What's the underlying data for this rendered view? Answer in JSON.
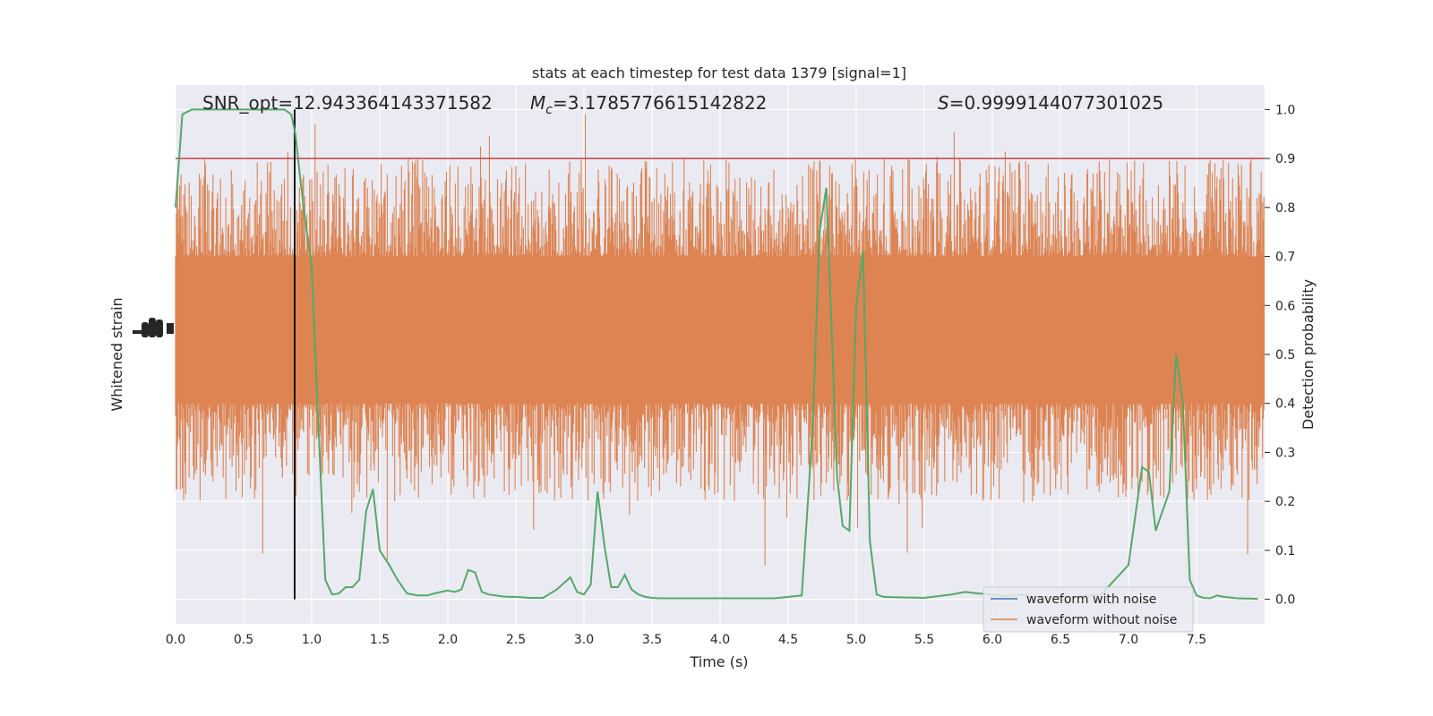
{
  "chart_data": {
    "type": "line",
    "title": "stats at each timestep for test data 1379 [signal=1]",
    "annotations": {
      "snr": "SNR_opt=12.943364143371582",
      "mc_symbol": "M",
      "mc_subscript": "c",
      "mc_value": "=3.1785776615142822",
      "s_symbol": "S",
      "s_value": "=0.9999144077301025"
    },
    "xlabel": "Time (s)",
    "ylabel_left": "Whitened strain",
    "ylabel_right": "Detection probability",
    "xlim": [
      0.0,
      8.0
    ],
    "ylim_right": [
      -0.05,
      1.05
    ],
    "x_ticks": [
      "0.0",
      "0.5",
      "1.0",
      "1.5",
      "2.0",
      "2.5",
      "3.0",
      "3.5",
      "4.0",
      "4.5",
      "5.0",
      "5.5",
      "6.0",
      "6.5",
      "7.0",
      "7.5"
    ],
    "y_ticks_right": [
      "0.0",
      "0.1",
      "0.2",
      "0.3",
      "0.4",
      "0.5",
      "0.6",
      "0.7",
      "0.8",
      "0.9",
      "1.0"
    ],
    "grid": true,
    "legend_position": "bottom-right",
    "legend": [
      {
        "label": "waveform with noise",
        "color": "#4c72b0"
      },
      {
        "label": "waveform without noise",
        "color": "#dd8452"
      }
    ],
    "threshold": {
      "y": 0.9,
      "color": "#c44e52"
    },
    "vline": {
      "x": 0.875,
      "color": "#000000"
    },
    "colors": {
      "background": "#eaeaf2",
      "grid": "#ffffff",
      "strain": "#dd8452",
      "probability": "#55a868"
    },
    "strain_band": {
      "core_low": 0.4,
      "core_high": 0.7,
      "min": -0.05,
      "max": 1.03
    },
    "probability_series": {
      "name": "Detection probability",
      "x": [
        0.0,
        0.05,
        0.12,
        0.2,
        0.4,
        0.6,
        0.8,
        0.85,
        0.88,
        0.92,
        0.95,
        1.0,
        1.05,
        1.1,
        1.15,
        1.2,
        1.25,
        1.3,
        1.35,
        1.4,
        1.45,
        1.5,
        1.57,
        1.63,
        1.7,
        1.78,
        1.85,
        1.9,
        1.95,
        2.0,
        2.05,
        2.1,
        2.15,
        2.2,
        2.25,
        2.3,
        2.35,
        2.4,
        2.45,
        2.5,
        2.6,
        2.7,
        2.8,
        2.9,
        2.95,
        3.0,
        3.05,
        3.1,
        3.15,
        3.2,
        3.25,
        3.3,
        3.35,
        3.4,
        3.45,
        3.5,
        3.55,
        3.6,
        3.7,
        3.85,
        4.0,
        4.2,
        4.4,
        4.6,
        4.68,
        4.73,
        4.78,
        4.82,
        4.86,
        4.9,
        4.95,
        5.0,
        5.05,
        5.1,
        5.15,
        5.2,
        5.3,
        5.5,
        5.7,
        5.8,
        5.9,
        6.0,
        6.05,
        6.1,
        6.2,
        6.3,
        6.4,
        6.6,
        6.8,
        7.0,
        7.1,
        7.15,
        7.2,
        7.3,
        7.35,
        7.4,
        7.45,
        7.5,
        7.55,
        7.6,
        7.65,
        7.7,
        7.8,
        7.95
      ],
      "y": [
        0.8,
        0.99,
        1.0,
        1.0,
        1.0,
        1.0,
        1.0,
        0.99,
        0.95,
        0.85,
        0.78,
        0.68,
        0.35,
        0.04,
        0.01,
        0.012,
        0.025,
        0.025,
        0.04,
        0.18,
        0.225,
        0.1,
        0.07,
        0.04,
        0.012,
        0.008,
        0.008,
        0.012,
        0.015,
        0.018,
        0.015,
        0.02,
        0.06,
        0.055,
        0.015,
        0.01,
        0.008,
        0.006,
        0.005,
        0.005,
        0.003,
        0.003,
        0.02,
        0.045,
        0.015,
        0.01,
        0.03,
        0.22,
        0.11,
        0.025,
        0.025,
        0.05,
        0.02,
        0.01,
        0.005,
        0.003,
        0.002,
        0.002,
        0.002,
        0.002,
        0.002,
        0.002,
        0.002,
        0.008,
        0.35,
        0.75,
        0.84,
        0.55,
        0.25,
        0.15,
        0.14,
        0.6,
        0.71,
        0.12,
        0.01,
        0.005,
        0.004,
        0.003,
        0.01,
        0.015,
        0.012,
        0.01,
        0.008,
        0.006,
        0.01,
        0.005,
        0.005,
        0.005,
        0.01,
        0.07,
        0.27,
        0.26,
        0.14,
        0.22,
        0.5,
        0.4,
        0.04,
        0.008,
        0.003,
        0.002,
        0.008,
        0.005,
        0.002,
        0.001
      ]
    }
  }
}
